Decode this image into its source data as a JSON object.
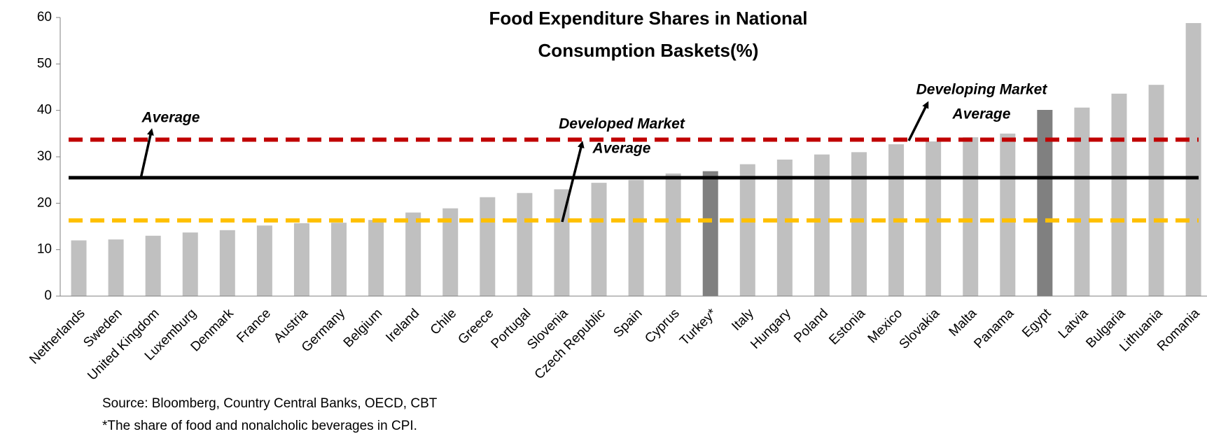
{
  "chart_data": {
    "type": "bar",
    "title": [
      "Food Expenditure Shares in National",
      "Consumption Baskets(%)"
    ],
    "categories": [
      "Netherlands",
      "Sweden",
      "United Kingdom",
      "Luxemburg",
      "Denmark",
      "France",
      "Austria",
      "Germany",
      "Belgium",
      "Ireland",
      "Chile",
      "Greece",
      "Portugal",
      "Slovenia",
      "Czech Republic",
      "Spain",
      "Cyprus",
      "Turkey*",
      "Italy",
      "Hungary",
      "Poland",
      "Estonia",
      "Mexico",
      "Slovakia",
      "Malta",
      "Panama",
      "Egypt",
      "Latvia",
      "Bulgaria",
      "Lithuania",
      "Romania"
    ],
    "values": [
      12,
      12.2,
      13,
      13.7,
      14.2,
      15.2,
      15.7,
      15.8,
      16.4,
      18,
      18.9,
      21.3,
      22.2,
      23,
      24.4,
      25,
      26.4,
      26.9,
      28.4,
      29.4,
      30.5,
      31,
      32.7,
      33.3,
      34.2,
      35,
      40.1,
      40.6,
      43.6,
      45.5,
      58.8
    ],
    "colors": [
      "#c0c0c0",
      "#c0c0c0",
      "#c0c0c0",
      "#c0c0c0",
      "#c0c0c0",
      "#c0c0c0",
      "#c0c0c0",
      "#c0c0c0",
      "#c0c0c0",
      "#c0c0c0",
      "#c0c0c0",
      "#c0c0c0",
      "#c0c0c0",
      "#c0c0c0",
      "#c0c0c0",
      "#c0c0c0",
      "#c0c0c0",
      "#808080",
      "#c0c0c0",
      "#c0c0c0",
      "#c0c0c0",
      "#c0c0c0",
      "#c0c0c0",
      "#c0c0c0",
      "#c0c0c0",
      "#c0c0c0",
      "#808080",
      "#c0c0c0",
      "#c0c0c0",
      "#c0c0c0",
      "#c0c0c0"
    ],
    "ylim": [
      0,
      60
    ],
    "yticks": [
      0,
      10,
      20,
      30,
      40,
      50,
      60
    ],
    "reference_lines": [
      {
        "label": [
          "Average"
        ],
        "value": 25.5,
        "color": "#000000",
        "style": "solid"
      },
      {
        "label": [
          "Developed Market",
          "Average"
        ],
        "value": 16.3,
        "color": "#ffc000",
        "style": "dashed"
      },
      {
        "label": [
          "Developing Market",
          "Average"
        ],
        "value": 33.7,
        "color": "#c00000",
        "style": "dashed"
      }
    ],
    "notes": [
      "Source: Bloomberg, Country Central Banks, OECD, CBT",
      "*The share of food and nonalcholic beverages in CPI."
    ]
  }
}
